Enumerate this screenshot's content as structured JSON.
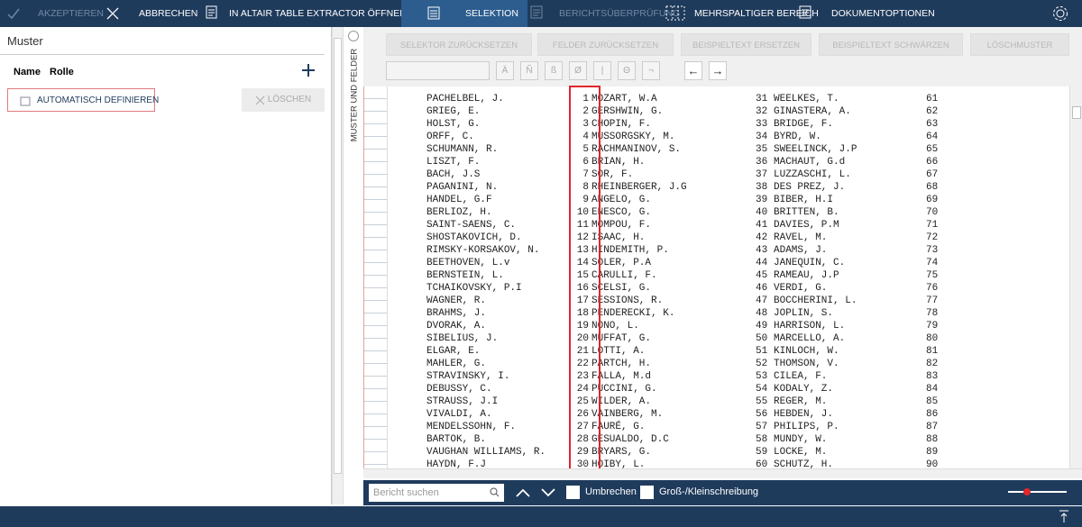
{
  "toolbar": {
    "accept": "AKZEPTIEREN",
    "cancel": "ABBRECHEN",
    "open_extractor": "IN ALTAIR TABLE EXTRACTOR ÖFFNEN",
    "tabs": [
      "SELEKTION",
      "BERICHTSÜBERPRÜFUNG",
      "MEHRSPALTIGER BEREICH",
      "DOKUMENTOPTIONEN"
    ]
  },
  "left_panel": {
    "title": "Muster",
    "columns": [
      "Name",
      "Rolle"
    ],
    "auto_define": "AUTOMATISCH DEFINIEREN",
    "delete": "LÖSCHEN",
    "side_tab": "MUSTER UND FELDER"
  },
  "report_toolbar": {
    "buttons": [
      "SELEKTOR ZURÜCKSETZEN",
      "FELDER ZURÜCKSETZEN",
      "BEISPIELTEXT ERSETZEN",
      "BEISPIELTEXT SCHWÄRZEN",
      "LÖSCHMUSTER"
    ],
    "characters": [
      "Ä",
      "Ñ",
      "ß",
      "Ø",
      "|",
      "Θ",
      "¬",
      "←",
      "→"
    ]
  },
  "report": {
    "rows": [
      [
        "PACHELBEL, J.",
        "1",
        "MOZART, W.A",
        "31",
        "WEELKES, T.",
        "61"
      ],
      [
        "GRIEG, E.",
        "2",
        "GERSHWIN, G.",
        "32",
        "GINASTERA, A.",
        "62"
      ],
      [
        "HOLST, G.",
        "3",
        "CHOPIN, F.",
        "33",
        "BRIDGE, F.",
        "63"
      ],
      [
        "ORFF, C.",
        "4",
        "MUSSORGSKY, M.",
        "34",
        "BYRD, W.",
        "64"
      ],
      [
        "SCHUMANN, R.",
        "5",
        "RACHMANINOV, S.",
        "35",
        "SWEELINCK, J.P",
        "65"
      ],
      [
        "LISZT, F.",
        "6",
        "BRIAN, H.",
        "36",
        "MACHAUT, G.d",
        "66"
      ],
      [
        "BACH, J.S",
        "7",
        "SOR, F.",
        "37",
        "LUZZASCHI, L.",
        "67"
      ],
      [
        "PAGANINI, N.",
        "8",
        "RHEINBERGER, J.G",
        "38",
        "DES PREZ, J.",
        "68"
      ],
      [
        "HANDEL, G.F",
        "9",
        "ANGELO, G.",
        "39",
        "BIBER, H.I",
        "69"
      ],
      [
        "BERLIOZ, H.",
        "10",
        "ENESCO, G.",
        "40",
        "BRITTEN, B.",
        "70"
      ],
      [
        "SAINT-SAENS, C.",
        "11",
        "MOMPOU, F.",
        "41",
        "DAVIES, P.M",
        "71"
      ],
      [
        "SHOSTAKOVICH, D.",
        "12",
        "ISAAC, H.",
        "42",
        "RAVEL, M.",
        "72"
      ],
      [
        "RIMSKY-KORSAKOV, N.",
        "13",
        "HINDEMITH, P.",
        "43",
        "ADAMS, J.",
        "73"
      ],
      [
        "BEETHOVEN, L.v",
        "14",
        "SOLER, P.A",
        "44",
        "JANEQUIN, C.",
        "74"
      ],
      [
        "BERNSTEIN, L.",
        "15",
        "CARULLI, F.",
        "45",
        "RAMEAU, J.P",
        "75"
      ],
      [
        "TCHAIKOVSKY, P.I",
        "16",
        "SCELSI, G.",
        "46",
        "VERDI, G.",
        "76"
      ],
      [
        "WAGNER, R.",
        "17",
        "SESSIONS, R.",
        "47",
        "BOCCHERINI, L.",
        "77"
      ],
      [
        "BRAHMS, J.",
        "18",
        "PENDERECKI, K.",
        "48",
        "JOPLIN, S.",
        "78"
      ],
      [
        "DVORAK, A.",
        "19",
        "NONO, L.",
        "49",
        "HARRISON, L.",
        "79"
      ],
      [
        "SIBELIUS, J.",
        "20",
        "MUFFAT, G.",
        "50",
        "MARCELLO, A.",
        "80"
      ],
      [
        "ELGAR, E.",
        "21",
        "LOTTI, A.",
        "51",
        "KINLOCH, W.",
        "81"
      ],
      [
        "MAHLER, G.",
        "22",
        "PARTCH, H.",
        "52",
        "THOMSON, V.",
        "82"
      ],
      [
        "STRAVINSKY, I.",
        "23",
        "FALLA, M.d",
        "53",
        "CILEA, F.",
        "83"
      ],
      [
        "DEBUSSY, C.",
        "24",
        "PUCCINI, G.",
        "54",
        "KODALY, Z.",
        "84"
      ],
      [
        "STRAUSS, J.I",
        "25",
        "WILDER, A.",
        "55",
        "REGER, M.",
        "85"
      ],
      [
        "VIVALDI, A.",
        "26",
        "VAINBERG, M.",
        "56",
        "HEBDEN, J.",
        "86"
      ],
      [
        "MENDELSSOHN, F.",
        "27",
        "FAURÉ, G.",
        "57",
        "PHILIPS, P.",
        "87"
      ],
      [
        "BARTOK, B.",
        "28",
        "GESUALDO, D.C",
        "58",
        "MUNDY, W.",
        "88"
      ],
      [
        "VAUGHAN WILLIAMS, R.",
        "29",
        "BRYARS, G.",
        "59",
        "LOCKE, M.",
        "89"
      ],
      [
        "HAYDN, F.J",
        "30",
        "HOIBY, L.",
        "60",
        "SCHUTZ, H.",
        "90"
      ]
    ]
  },
  "search": {
    "placeholder": "Bericht suchen",
    "wrap": "Umbrechen",
    "match_case": "Groß-/Kleinschreibung"
  }
}
